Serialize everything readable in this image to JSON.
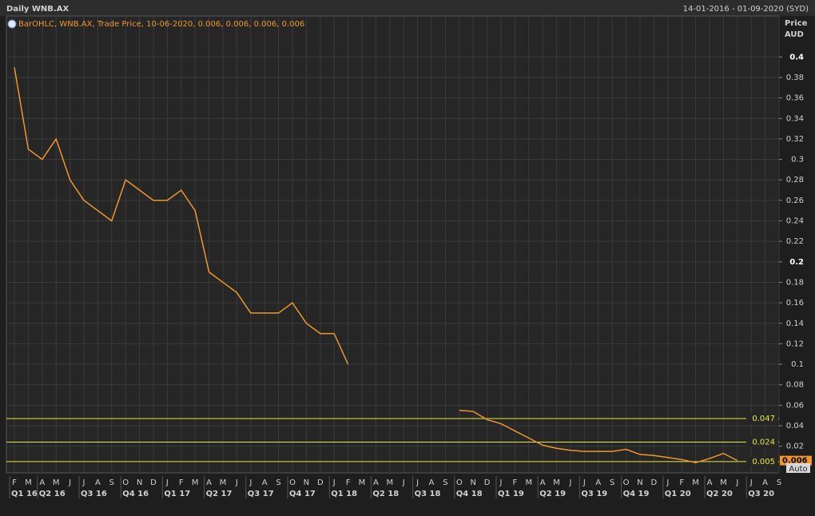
{
  "chart_data": {
    "type": "line",
    "title": "Daily WNB.AX",
    "date_range": "14-01-2016 - 01-09-2020 (SYD)",
    "legend_text": "BarOHLC, WNB.AX, Trade Price, 10-06-2020, 0.006, 0.006, 0.006, 0.006",
    "y_axis_title": "Price",
    "y_axis_unit": "AUD",
    "button": "Auto",
    "categories": [
      "F",
      "M",
      "A",
      "M",
      "J",
      "J",
      "A",
      "S",
      "O",
      "N",
      "D",
      "J",
      "F",
      "M",
      "A",
      "M",
      "J",
      "J",
      "A",
      "S",
      "O",
      "N",
      "D",
      "J",
      "F",
      "M",
      "A",
      "M",
      "J",
      "J",
      "A",
      "S",
      "O",
      "N",
      "D",
      "J",
      "F",
      "M",
      "A",
      "M",
      "J",
      "J",
      "A",
      "S",
      "O",
      "N",
      "D",
      "J",
      "F",
      "M",
      "A",
      "M",
      "J",
      "J",
      "A",
      "S"
    ],
    "quarters": [
      "Q1 16",
      "Q2 16",
      "Q3 16",
      "Q4 16",
      "Q1 17",
      "Q2 17",
      "Q3 17",
      "Q4 17",
      "Q1 18",
      "Q2 18",
      "Q3 18",
      "Q4 18",
      "Q1 19",
      "Q2 19",
      "Q3 19",
      "Q4 19",
      "Q1 20",
      "Q2 20",
      "Q3 20"
    ],
    "series": [
      {
        "name": "WNB.AX",
        "color": "#f0962c",
        "values": [
          0.39,
          0.31,
          0.3,
          0.32,
          0.28,
          0.26,
          0.25,
          0.24,
          0.28,
          0.27,
          0.26,
          0.26,
          0.27,
          0.25,
          0.19,
          0.18,
          0.17,
          0.15,
          0.15,
          0.15,
          0.16,
          0.14,
          0.13,
          0.13,
          0.1,
          null,
          null,
          null,
          null,
          null,
          null,
          null,
          0.055,
          0.054,
          0.046,
          0.042,
          0.035,
          0.028,
          0.021,
          0.018,
          0.016,
          0.015,
          0.015,
          0.015,
          0.017,
          0.012,
          0.011,
          0.009,
          0.007,
          0.004,
          0.008,
          0.013,
          0.006,
          null,
          null,
          null
        ]
      }
    ],
    "ylim": [
      -0.006,
      0.44
    ],
    "yticks": [
      0.02,
      0.04,
      0.06,
      0.08,
      0.1,
      0.12,
      0.14,
      0.16,
      0.18,
      0.2,
      0.22,
      0.24,
      0.26,
      0.28,
      0.3,
      0.32,
      0.34,
      0.36,
      0.38,
      0.4
    ],
    "hlines": [
      0.047,
      0.024,
      0.005
    ],
    "hline_color": "#e8e83a",
    "last_value": 0.006,
    "grid": true
  }
}
